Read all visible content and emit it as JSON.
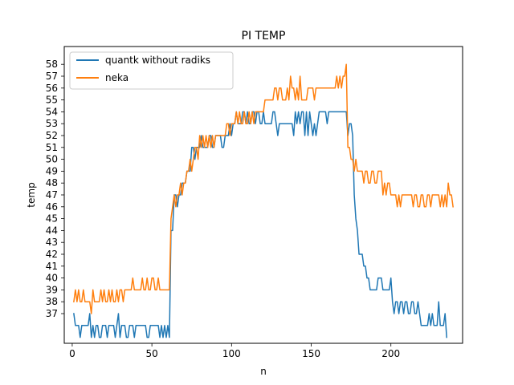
{
  "chart_data": {
    "type": "line",
    "title": "PI TEMP",
    "xlabel": "n",
    "ylabel": "temp",
    "xlim": [
      -5,
      245
    ],
    "ylim": [
      34.5,
      59.5
    ],
    "xticks": [
      0,
      50,
      100,
      150,
      200
    ],
    "yticks": [
      37,
      38,
      39,
      40,
      41,
      42,
      43,
      44,
      45,
      46,
      47,
      48,
      49,
      50,
      51,
      52,
      53,
      54,
      55,
      56,
      57,
      58
    ],
    "grid": false,
    "legend_position": "upper left",
    "series": [
      {
        "name": "quantk without radiks",
        "color": "#1f77b4",
        "x_start": 1,
        "values": [
          37,
          36,
          36,
          36,
          35,
          36,
          36,
          36,
          36,
          36,
          37,
          35,
          36,
          35,
          36,
          36,
          35,
          35,
          36,
          36,
          36,
          35,
          36,
          36,
          36,
          36,
          35,
          36,
          37,
          35,
          36,
          36,
          36,
          35,
          35,
          36,
          36,
          36,
          35,
          36,
          36,
          36,
          36,
          36,
          36,
          36,
          35,
          35,
          36,
          36,
          36,
          36,
          36,
          36,
          35,
          36,
          35,
          36,
          35,
          36,
          35,
          44,
          44,
          47,
          47,
          46,
          47,
          47,
          48,
          48,
          48,
          49,
          49,
          49,
          51,
          51,
          50,
          51,
          51,
          51,
          52,
          51,
          51,
          51,
          51,
          52,
          52,
          51,
          51,
          52,
          52,
          52,
          52,
          51,
          51,
          52,
          52,
          52,
          53,
          52,
          53,
          53,
          54,
          53,
          53,
          53,
          54,
          54,
          53,
          54,
          53,
          53,
          54,
          54,
          53,
          54,
          54,
          53,
          53,
          54,
          53,
          53,
          53,
          53,
          53,
          54,
          54,
          53,
          52,
          53,
          53,
          53,
          53,
          53,
          53,
          53,
          53,
          53,
          52,
          54,
          53,
          54,
          53,
          54,
          54,
          52,
          54,
          52,
          54,
          53,
          52,
          53,
          52,
          53,
          54,
          54,
          54,
          54,
          54,
          53,
          54,
          54,
          54,
          54,
          54,
          54,
          54,
          54,
          54,
          54,
          54,
          54,
          52,
          53,
          53,
          52,
          47,
          45,
          44,
          42,
          42,
          42,
          41,
          41,
          40,
          40,
          39,
          39,
          39,
          39,
          39,
          40,
          40,
          40,
          39,
          39,
          39,
          39,
          39,
          40,
          38,
          37,
          38,
          38,
          37,
          38,
          38,
          37,
          38,
          38,
          37,
          37,
          38,
          38,
          37,
          37,
          38,
          37,
          36,
          36,
          36,
          36,
          36,
          37,
          36,
          37,
          36,
          36,
          36,
          38,
          36,
          36,
          36,
          37,
          35
        ]
      },
      {
        "name": "neka",
        "color": "#ff7f0e",
        "x_start": 1,
        "values": [
          38,
          39,
          38,
          39,
          38,
          38,
          39,
          38,
          38,
          38,
          38,
          37,
          39,
          38,
          38,
          38,
          38,
          39,
          38,
          39,
          38,
          38,
          39,
          38,
          39,
          38,
          38,
          39,
          38,
          39,
          39,
          38,
          39,
          39,
          39,
          39,
          39,
          40,
          39,
          39,
          39,
          39,
          39,
          40,
          39,
          39,
          40,
          39,
          39,
          40,
          40,
          39,
          39,
          40,
          39,
          39,
          39,
          39,
          39,
          39,
          39,
          45,
          46,
          47,
          46,
          47,
          47,
          48,
          47,
          48,
          48,
          49,
          49,
          50,
          49,
          50,
          51,
          51,
          50,
          52,
          51,
          52,
          51,
          52,
          51,
          52,
          51,
          52,
          51,
          52,
          52,
          52,
          52,
          52,
          52,
          52,
          53,
          53,
          52,
          53,
          53,
          53,
          54,
          53,
          54,
          53,
          53,
          54,
          53,
          53,
          54,
          53,
          54,
          53,
          54,
          54,
          54,
          54,
          54,
          54,
          55,
          55,
          55,
          55,
          55,
          55,
          56,
          56,
          55,
          56,
          56,
          55,
          55,
          55,
          56,
          55,
          57,
          56,
          56,
          55,
          56,
          55,
          57,
          55,
          55,
          55,
          55,
          56,
          56,
          56,
          56,
          55,
          56,
          56,
          56,
          56,
          56,
          56,
          56,
          56,
          56,
          56,
          56,
          56,
          56,
          57,
          56,
          57,
          56,
          57,
          57,
          58,
          51,
          51,
          50,
          50,
          49,
          50,
          49,
          49,
          49,
          49,
          48,
          49,
          49,
          48,
          48,
          49,
          49,
          48,
          48,
          49,
          49,
          49,
          47,
          48,
          47,
          48,
          48,
          47,
          47,
          47,
          47,
          46,
          47,
          46,
          47,
          47,
          47,
          47,
          47,
          47,
          47,
          46,
          47,
          47,
          46,
          46,
          47,
          47,
          46,
          46,
          47,
          47,
          46,
          47,
          47,
          47,
          47,
          47,
          46,
          47,
          46,
          47,
          46,
          48,
          47,
          47,
          46
        ]
      }
    ]
  }
}
